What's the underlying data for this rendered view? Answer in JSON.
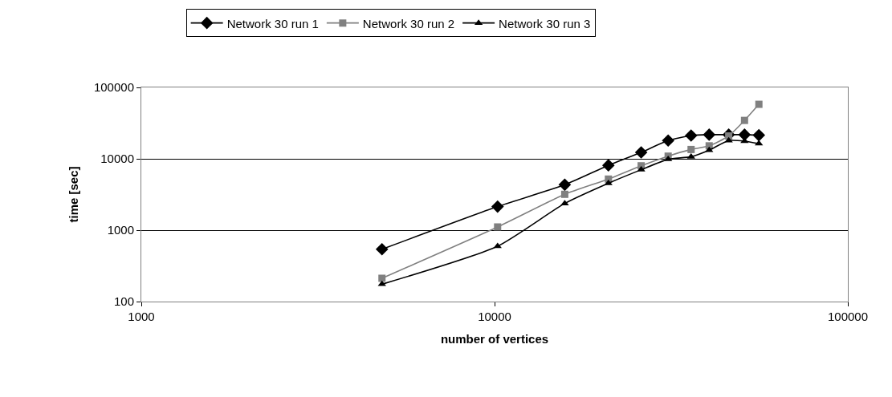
{
  "chart_data": {
    "type": "line",
    "xlabel": "number of vertices",
    "ylabel": "time [sec]",
    "log": "xy",
    "xlim": [
      1000,
      100000
    ],
    "xticks": [
      1000,
      10000,
      100000
    ],
    "ylim": [
      100,
      100000
    ],
    "yticks": [
      100,
      1000,
      10000,
      100000
    ],
    "grid": "y",
    "legend": "top",
    "line_style": "solid",
    "x": [
      4800,
      10200,
      15800,
      21000,
      26000,
      31000,
      36000,
      40500,
      46000,
      51000,
      56000
    ],
    "series": [
      {
        "name": "Network 30 run 1",
        "color": "#000000",
        "marker": "diamond",
        "values": [
          540,
          2140,
          4330,
          8100,
          12300,
          18000,
          21200,
          21800,
          21800,
          21800,
          21400
        ]
      },
      {
        "name": "Network 30 run 2",
        "color": "#808080",
        "marker": "square",
        "values": [
          212,
          1110,
          3180,
          5200,
          7980,
          10900,
          13500,
          15200,
          20900,
          34500,
          58000
        ]
      },
      {
        "name": "Network 30 run 3",
        "color": "#000000",
        "marker": "triangle",
        "values": [
          175,
          596,
          2370,
          4550,
          7030,
          9840,
          10700,
          13200,
          18000,
          17700,
          16300
        ]
      }
    ]
  }
}
